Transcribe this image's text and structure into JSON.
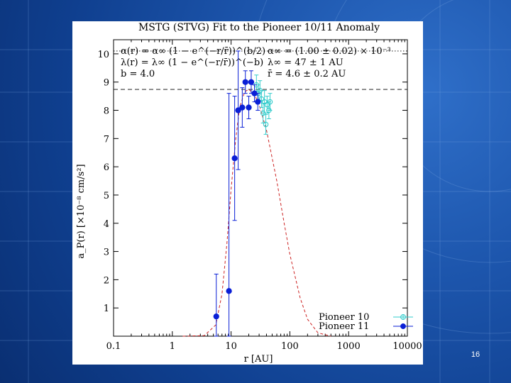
{
  "slide": {
    "page_number": "16",
    "background_color": "#1d56ad"
  },
  "chart_data": {
    "type": "scatter",
    "title": "MSTG (STVG) Fit to the Pioneer 10/11 Anomaly",
    "xlabel": "r [AU]",
    "ylabel": "a_P(r) [×10⁻⁸ cm/s²]",
    "xscale": "log",
    "xlim": [
      0.1,
      10000
    ],
    "ylim": [
      0,
      10.5
    ],
    "xticks": [
      {
        "value": 0.1,
        "label": "0.1"
      },
      {
        "value": 1,
        "label": "1"
      },
      {
        "value": 10,
        "label": "10"
      },
      {
        "value": 100,
        "label": "100"
      },
      {
        "value": 1000,
        "label": "1000"
      },
      {
        "value": 10000,
        "label": "10000"
      }
    ],
    "yticks": [
      {
        "value": 1,
        "label": "1"
      },
      {
        "value": 2,
        "label": "2"
      },
      {
        "value": 3,
        "label": "3"
      },
      {
        "value": 4,
        "label": "4"
      },
      {
        "value": 5,
        "label": "5"
      },
      {
        "value": 6,
        "label": "6"
      },
      {
        "value": 7,
        "label": "7"
      },
      {
        "value": 8,
        "label": "8"
      },
      {
        "value": 9,
        "label": "9"
      },
      {
        "value": 10,
        "label": "10"
      }
    ],
    "grid": false,
    "legend_position": "bottom-right",
    "parameters": {
      "left": [
        "α(r) = α∞ (1 − e^(−r/r̄))^(b/2)",
        "λ(r) = λ∞ (1 − e^(−r/r̄))^(−b)",
        "b = 4.0"
      ],
      "right": [
        "α∞ = (1.00 ± 0.02) × 10⁻³",
        "λ∞ = 47 ± 1 AU",
        "r̄ = 4.6 ± 0.2 AU"
      ]
    },
    "reference_lines": [
      {
        "style": "dotted",
        "y": 10.1
      },
      {
        "style": "dashed",
        "y": 8.74
      }
    ],
    "fit_curve": {
      "color": "#cc2222",
      "style": "dashed",
      "points": [
        [
          1.5,
          0.0
        ],
        [
          3.5,
          0.02
        ],
        [
          5.5,
          0.4
        ],
        [
          7,
          1.5
        ],
        [
          8.5,
          3.3
        ],
        [
          10,
          5.2
        ],
        [
          12,
          7.0
        ],
        [
          14,
          8.1
        ],
        [
          17,
          8.65
        ],
        [
          20,
          8.75
        ],
        [
          25,
          8.55
        ],
        [
          30,
          8.2
        ],
        [
          40,
          7.3
        ],
        [
          60,
          5.5
        ],
        [
          80,
          4.0
        ],
        [
          100,
          2.9
        ],
        [
          150,
          1.35
        ],
        [
          200,
          0.6
        ],
        [
          300,
          0.12
        ],
        [
          500,
          0.0
        ]
      ]
    },
    "series": [
      {
        "name": "Pioneer 10",
        "color": "#33cccc",
        "marker": "open-circle",
        "points": [
          {
            "x": 27,
            "y": 8.9,
            "yerr": 0.35
          },
          {
            "x": 29,
            "y": 8.6,
            "yerr": 0.3
          },
          {
            "x": 31,
            "y": 8.7,
            "yerr": 0.35
          },
          {
            "x": 33,
            "y": 8.4,
            "yerr": 0.3
          },
          {
            "x": 35,
            "y": 7.9,
            "yerr": 0.35
          },
          {
            "x": 37,
            "y": 8.3,
            "yerr": 0.4
          },
          {
            "x": 39,
            "y": 7.5,
            "yerr": 0.35
          },
          {
            "x": 41,
            "y": 8.2,
            "yerr": 0.3
          },
          {
            "x": 44,
            "y": 8.0,
            "yerr": 0.3
          },
          {
            "x": 46,
            "y": 8.3,
            "yerr": 0.3
          }
        ]
      },
      {
        "name": "Pioneer 11",
        "color": "#0a1fd6",
        "marker": "filled-circle",
        "points": [
          {
            "x": 5.6,
            "y": 0.7,
            "yerr": 1.5
          },
          {
            "x": 9.2,
            "y": 1.6,
            "yerr": 7.0
          },
          {
            "x": 11.5,
            "y": 6.3,
            "yerr": 2.2
          },
          {
            "x": 13.2,
            "y": 8.0,
            "yerr": 2.1
          },
          {
            "x": 15.5,
            "y": 8.1,
            "yerr": 0.7
          },
          {
            "x": 17.5,
            "y": 9.0,
            "yerr": 0.4
          },
          {
            "x": 20,
            "y": 8.1,
            "yerr": 0.4
          },
          {
            "x": 22,
            "y": 9.0,
            "yerr": 0.4
          },
          {
            "x": 25,
            "y": 8.6,
            "yerr": 0.3
          },
          {
            "x": 28.5,
            "y": 8.3,
            "yerr": 0.3
          }
        ]
      }
    ]
  }
}
